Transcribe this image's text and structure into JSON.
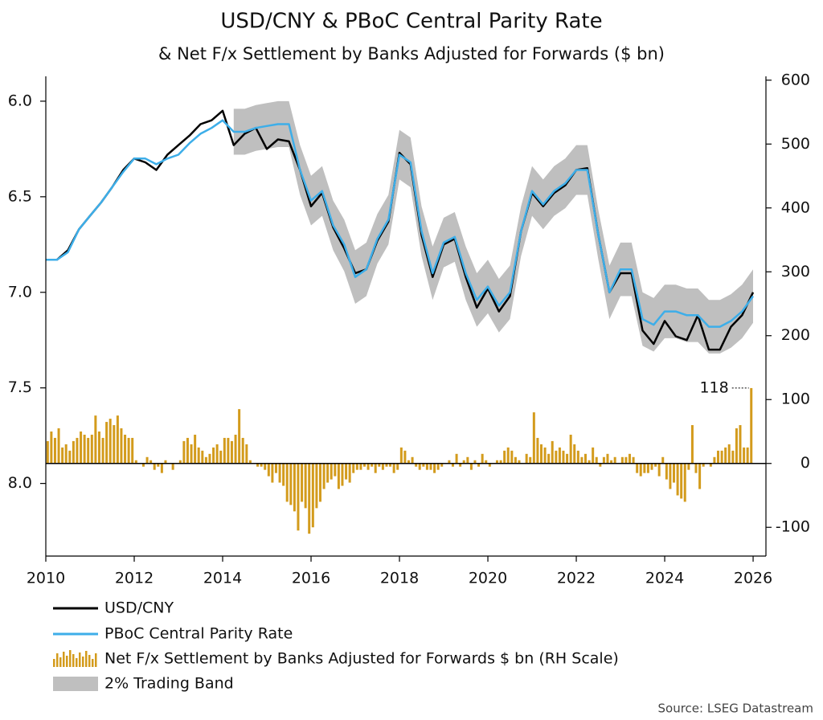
{
  "chart_data": {
    "type": "line",
    "title": "USD/CNY & PBoC Central Parity Rate",
    "subtitle": "& Net F/x Settlement by Banks Adjusted for Forwards ($ bn)",
    "source": "Source: LSEG Datastream",
    "xlim": [
      2010,
      2026.29
    ],
    "xticks": [
      2010,
      2012,
      2014,
      2016,
      2018,
      2020,
      2022,
      2024,
      2026
    ],
    "ylim": [
      5.87,
      8.38
    ],
    "y_inverted": true,
    "yticks": [
      {
        "value": 6,
        "label": "6.0"
      },
      6.5,
      {
        "value": 7,
        "label": "7.0"
      },
      7.5,
      {
        "value": 8,
        "label": "8.0"
      }
    ],
    "y2lim": [
      -145,
      606
    ],
    "y2ticks": [
      600,
      500,
      400,
      300,
      200,
      100,
      0,
      -100
    ],
    "x": [
      2010,
      2010.25,
      2010.5,
      2010.75,
      2011,
      2011.25,
      2011.5,
      2011.75,
      2012,
      2012.25,
      2012.5,
      2012.75,
      2013,
      2013.25,
      2013.5,
      2013.75,
      2014,
      2014.25,
      2014.5,
      2014.75,
      2015,
      2015.25,
      2015.5,
      2015.75,
      2016,
      2016.25,
      2016.5,
      2016.75,
      2017,
      2017.25,
      2017.5,
      2017.75,
      2018,
      2018.25,
      2018.5,
      2018.75,
      2019,
      2019.25,
      2019.5,
      2019.75,
      2020,
      2020.25,
      2020.5,
      2020.75,
      2021,
      2021.25,
      2021.5,
      2021.75,
      2022,
      2022.25,
      2022.5,
      2022.75,
      2023,
      2023.25,
      2023.5,
      2023.75,
      2024,
      2024.25,
      2024.5,
      2024.75,
      2025,
      2025.25,
      2025.5,
      2025.75,
      2026
    ],
    "band": {
      "name": "2% Trading Band",
      "color": "#bfbfbf",
      "upper": [
        null,
        null,
        null,
        null,
        null,
        null,
        null,
        null,
        null,
        null,
        null,
        null,
        null,
        null,
        null,
        null,
        null,
        6.28,
        6.28,
        6.26,
        6.25,
        6.24,
        6.24,
        6.49,
        6.65,
        6.6,
        6.78,
        6.89,
        7.06,
        7.02,
        6.85,
        6.75,
        6.41,
        6.45,
        6.81,
        7.04,
        6.87,
        6.84,
        7.04,
        7.18,
        7.11,
        7.21,
        7.14,
        6.81,
        6.6,
        6.67,
        6.6,
        6.56,
        6.49,
        6.49,
        6.83,
        7.14,
        7.02,
        7.02,
        7.28,
        7.31,
        7.24,
        7.24,
        7.26,
        7.26,
        7.32,
        7.32,
        7.29,
        7.24,
        7.16
      ],
      "lower": [
        null,
        null,
        null,
        null,
        null,
        null,
        null,
        null,
        null,
        null,
        null,
        null,
        null,
        null,
        null,
        null,
        null,
        6.04,
        6.04,
        6.02,
        6.01,
        6,
        6,
        6.23,
        6.39,
        6.34,
        6.52,
        6.62,
        6.78,
        6.74,
        6.59,
        6.49,
        6.15,
        6.19,
        6.55,
        6.76,
        6.61,
        6.58,
        6.76,
        6.9,
        6.83,
        6.93,
        6.86,
        6.55,
        6.34,
        6.41,
        6.34,
        6.3,
        6.23,
        6.23,
        6.57,
        6.86,
        6.74,
        6.74,
        7,
        7.03,
        6.96,
        6.96,
        6.98,
        6.98,
        7.04,
        7.04,
        7.01,
        6.96,
        6.88
      ]
    },
    "series": [
      {
        "name": "USD/CNY",
        "color": "#000000",
        "values": [
          6.83,
          6.83,
          6.78,
          6.67,
          6.6,
          6.53,
          6.45,
          6.36,
          6.3,
          6.32,
          6.36,
          6.28,
          6.23,
          6.18,
          6.12,
          6.1,
          6.05,
          6.23,
          6.17,
          6.14,
          6.25,
          6.2,
          6.21,
          6.36,
          6.55,
          6.48,
          6.66,
          6.77,
          6.9,
          6.88,
          6.73,
          6.63,
          6.27,
          6.33,
          6.7,
          6.92,
          6.75,
          6.72,
          6.92,
          7.08,
          6.98,
          7.1,
          7.02,
          6.68,
          6.48,
          6.55,
          6.48,
          6.44,
          6.36,
          6.35,
          6.7,
          7,
          6.9,
          6.9,
          7.2,
          7.27,
          7.15,
          7.23,
          7.25,
          7.12,
          7.3,
          7.3,
          7.18,
          7.12,
          7
        ]
      },
      {
        "name": "PBoC Central Parity Rate",
        "color": "#3daee9",
        "values": [
          6.83,
          6.83,
          6.79,
          6.67,
          6.6,
          6.53,
          6.45,
          6.37,
          6.3,
          6.3,
          6.33,
          6.3,
          6.28,
          6.22,
          6.17,
          6.14,
          6.1,
          6.16,
          6.16,
          6.14,
          6.13,
          6.12,
          6.12,
          6.36,
          6.52,
          6.47,
          6.65,
          6.75,
          6.92,
          6.88,
          6.72,
          6.62,
          6.28,
          6.32,
          6.68,
          6.9,
          6.74,
          6.71,
          6.9,
          7.04,
          6.97,
          7.07,
          7,
          6.68,
          6.47,
          6.54,
          6.47,
          6.43,
          6.36,
          6.36,
          6.7,
          7,
          6.88,
          6.88,
          7.14,
          7.17,
          7.1,
          7.1,
          7.12,
          7.12,
          7.18,
          7.18,
          7.15,
          7.1,
          7.02
        ]
      }
    ],
    "bars": {
      "name": "Net F/x Settlement by Banks Adjusted for Forwards $ bn (RH Scale)",
      "color": "#d39b1c",
      "axis": "y2",
      "x": [
        2010.042,
        2010.125,
        2010.208,
        2010.292,
        2010.375,
        2010.458,
        2010.542,
        2010.625,
        2010.708,
        2010.792,
        2010.875,
        2010.958,
        2011.042,
        2011.125,
        2011.208,
        2011.292,
        2011.375,
        2011.458,
        2011.542,
        2011.625,
        2011.708,
        2011.792,
        2011.875,
        2011.958,
        2012.042,
        2012.125,
        2012.208,
        2012.292,
        2012.375,
        2012.458,
        2012.542,
        2012.625,
        2012.708,
        2012.792,
        2012.875,
        2012.958,
        2013.042,
        2013.125,
        2013.208,
        2013.292,
        2013.375,
        2013.458,
        2013.542,
        2013.625,
        2013.708,
        2013.792,
        2013.875,
        2013.958,
        2014.042,
        2014.125,
        2014.208,
        2014.292,
        2014.375,
        2014.458,
        2014.542,
        2014.625,
        2014.708,
        2014.792,
        2014.875,
        2014.958,
        2015.042,
        2015.125,
        2015.208,
        2015.292,
        2015.375,
        2015.458,
        2015.542,
        2015.625,
        2015.708,
        2015.792,
        2015.875,
        2015.958,
        2016.042,
        2016.125,
        2016.208,
        2016.292,
        2016.375,
        2016.458,
        2016.542,
        2016.625,
        2016.708,
        2016.792,
        2016.875,
        2016.958,
        2017.042,
        2017.125,
        2017.208,
        2017.292,
        2017.375,
        2017.458,
        2017.542,
        2017.625,
        2017.708,
        2017.792,
        2017.875,
        2017.958,
        2018.042,
        2018.125,
        2018.208,
        2018.292,
        2018.375,
        2018.458,
        2018.542,
        2018.625,
        2018.708,
        2018.792,
        2018.875,
        2018.958,
        2019.042,
        2019.125,
        2019.208,
        2019.292,
        2019.375,
        2019.458,
        2019.542,
        2019.625,
        2019.708,
        2019.792,
        2019.875,
        2019.958,
        2020.042,
        2020.125,
        2020.208,
        2020.292,
        2020.375,
        2020.458,
        2020.542,
        2020.625,
        2020.708,
        2020.792,
        2020.875,
        2020.958,
        2021.042,
        2021.125,
        2021.208,
        2021.292,
        2021.375,
        2021.458,
        2021.542,
        2021.625,
        2021.708,
        2021.792,
        2021.875,
        2021.958,
        2022.042,
        2022.125,
        2022.208,
        2022.292,
        2022.375,
        2022.458,
        2022.542,
        2022.625,
        2022.708,
        2022.792,
        2022.875,
        2022.958,
        2023.042,
        2023.125,
        2023.208,
        2023.292,
        2023.375,
        2023.458,
        2023.542,
        2023.625,
        2023.708,
        2023.792,
        2023.875,
        2023.958,
        2024.042,
        2024.125,
        2024.208,
        2024.292,
        2024.375,
        2024.458,
        2024.542,
        2024.625,
        2024.708,
        2024.792,
        2024.875,
        2024.958,
        2025.042,
        2025.125,
        2025.208,
        2025.292,
        2025.375,
        2025.458,
        2025.542,
        2025.625,
        2025.708,
        2025.792,
        2025.875,
        2025.958
      ],
      "values": [
        35,
        50,
        40,
        55,
        25,
        30,
        20,
        35,
        40,
        50,
        45,
        40,
        45,
        75,
        50,
        40,
        65,
        70,
        60,
        75,
        55,
        45,
        40,
        40,
        5,
        0,
        -5,
        10,
        5,
        -10,
        -5,
        -15,
        5,
        0,
        -10,
        0,
        5,
        35,
        40,
        30,
        45,
        25,
        20,
        10,
        15,
        25,
        30,
        20,
        40,
        40,
        35,
        45,
        85,
        40,
        30,
        5,
        0,
        -5,
        -5,
        -10,
        -20,
        -30,
        -15,
        -30,
        -35,
        -60,
        -65,
        -75,
        -105,
        -60,
        -70,
        -110,
        -100,
        -70,
        -60,
        -40,
        -30,
        -25,
        -20,
        -40,
        -35,
        -25,
        -30,
        -15,
        -10,
        -10,
        -5,
        -10,
        -5,
        -15,
        -5,
        -10,
        -5,
        -5,
        -15,
        -10,
        25,
        20,
        5,
        10,
        -5,
        -10,
        -5,
        -10,
        -10,
        -15,
        -10,
        -5,
        0,
        5,
        -5,
        15,
        -5,
        5,
        10,
        -10,
        5,
        -5,
        15,
        5,
        -5,
        0,
        5,
        5,
        20,
        25,
        20,
        10,
        5,
        0,
        15,
        10,
        80,
        40,
        30,
        25,
        15,
        35,
        20,
        25,
        20,
        15,
        45,
        30,
        20,
        10,
        15,
        5,
        25,
        10,
        -5,
        10,
        15,
        5,
        10,
        0,
        10,
        10,
        15,
        10,
        -15,
        -20,
        -15,
        -15,
        -10,
        -5,
        -20,
        10,
        -25,
        -40,
        -30,
        -50,
        -55,
        -60,
        -10,
        60,
        -15,
        -40,
        -5,
        0,
        -5,
        10,
        20,
        20,
        25,
        30,
        20,
        55,
        60,
        25,
        25,
        118
      ]
    }
  }
}
